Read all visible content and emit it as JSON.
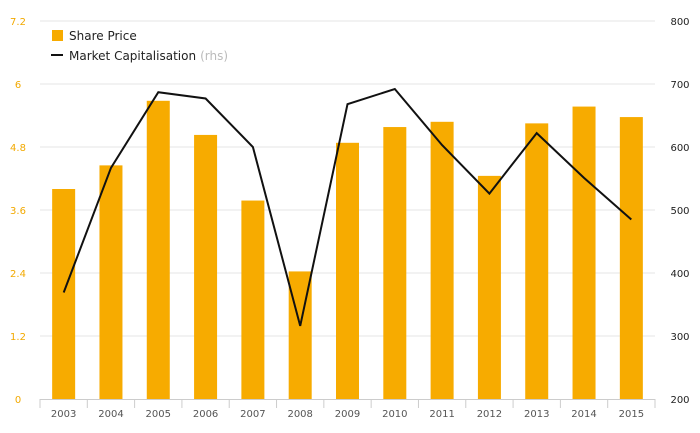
{
  "chart_data": {
    "type": "bar",
    "categories": [
      "2003",
      "2004",
      "2005",
      "2006",
      "2007",
      "2008",
      "2009",
      "2010",
      "2011",
      "2012",
      "2013",
      "2014",
      "2015"
    ],
    "series": [
      {
        "name": "Share Price",
        "type": "bar",
        "axis": "left",
        "color": "#f7ab00",
        "values": [
          4.0,
          4.45,
          5.68,
          5.03,
          3.78,
          2.43,
          4.88,
          5.18,
          5.28,
          4.25,
          5.25,
          5.57,
          5.37
        ]
      },
      {
        "name": "Market Capitalisation",
        "name_suffix": "(rhs)",
        "type": "line",
        "axis": "right",
        "color": "#111111",
        "values": [
          369,
          567,
          687,
          677,
          600,
          316,
          668,
          692,
          603,
          526,
          622,
          551,
          485
        ]
      }
    ],
    "y_left": {
      "ylim": [
        0,
        7.2
      ],
      "ticks": [
        "0",
        "1.2",
        "2.4",
        "3.6",
        "4.8",
        "6",
        "7.2"
      ],
      "color": "#f2a900"
    },
    "y_right": {
      "ylim": [
        200,
        800
      ],
      "ticks": [
        "200",
        "300",
        "400",
        "500",
        "600",
        "700",
        "800"
      ]
    },
    "grid": true,
    "legend_position": "top-left"
  }
}
